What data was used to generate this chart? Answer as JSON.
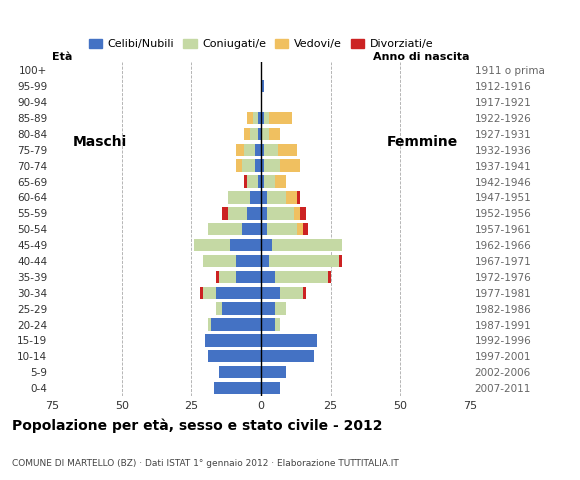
{
  "age_groups": [
    "0-4",
    "5-9",
    "10-14",
    "15-19",
    "20-24",
    "25-29",
    "30-34",
    "35-39",
    "40-44",
    "45-49",
    "50-54",
    "55-59",
    "60-64",
    "65-69",
    "70-74",
    "75-79",
    "80-84",
    "85-89",
    "90-94",
    "95-99",
    "100+"
  ],
  "birth_years": [
    "2007-2011",
    "2002-2006",
    "1997-2001",
    "1992-1996",
    "1987-1991",
    "1982-1986",
    "1977-1981",
    "1972-1976",
    "1967-1971",
    "1962-1966",
    "1957-1961",
    "1952-1956",
    "1947-1951",
    "1942-1946",
    "1937-1941",
    "1932-1936",
    "1927-1931",
    "1922-1926",
    "1917-1921",
    "1912-1916",
    "1911 o prima"
  ],
  "males": {
    "celibe": [
      17,
      15,
      19,
      20,
      18,
      14,
      16,
      9,
      9,
      11,
      7,
      5,
      4,
      1,
      2,
      2,
      1,
      1,
      0,
      0,
      0
    ],
    "coniugato": [
      0,
      0,
      0,
      0,
      1,
      2,
      5,
      6,
      12,
      13,
      12,
      7,
      8,
      4,
      5,
      4,
      3,
      2,
      0,
      0,
      0
    ],
    "vedovo": [
      0,
      0,
      0,
      0,
      0,
      0,
      0,
      0,
      0,
      0,
      0,
      0,
      0,
      0,
      2,
      3,
      2,
      2,
      0,
      0,
      0
    ],
    "divorziato": [
      0,
      0,
      0,
      0,
      0,
      0,
      1,
      1,
      0,
      0,
      0,
      2,
      0,
      1,
      0,
      0,
      0,
      0,
      0,
      0,
      0
    ]
  },
  "females": {
    "nubile": [
      7,
      9,
      19,
      20,
      5,
      5,
      7,
      5,
      3,
      4,
      2,
      2,
      2,
      1,
      1,
      1,
      0,
      1,
      0,
      1,
      0
    ],
    "coniugata": [
      0,
      0,
      0,
      0,
      2,
      4,
      8,
      19,
      25,
      25,
      11,
      10,
      7,
      4,
      6,
      5,
      3,
      2,
      0,
      0,
      0
    ],
    "vedova": [
      0,
      0,
      0,
      0,
      0,
      0,
      0,
      0,
      0,
      0,
      2,
      2,
      4,
      4,
      7,
      7,
      4,
      8,
      0,
      0,
      0
    ],
    "divorziata": [
      0,
      0,
      0,
      0,
      0,
      0,
      1,
      1,
      1,
      0,
      2,
      2,
      1,
      0,
      0,
      0,
      0,
      0,
      0,
      0,
      0
    ]
  },
  "colors": {
    "celibe": "#4472c4",
    "coniugato": "#c5d9a4",
    "vedovo": "#f0c060",
    "divorziato": "#cc2222"
  },
  "xlim": 75,
  "title": "Popolazione per età, sesso e stato civile - 2012",
  "subtitle": "COMUNE DI MARTELLO (BZ) · Dati ISTAT 1° gennaio 2012 · Elaborazione TUTTITALIA.IT",
  "legend_labels": [
    "Celibi/Nubili",
    "Coniugati/e",
    "Vedovi/e",
    "Divorziati/e"
  ],
  "label_maschi": "Maschi",
  "label_femmine": "Femmine",
  "label_eta": "Età",
  "label_anno": "Anno di nascita"
}
